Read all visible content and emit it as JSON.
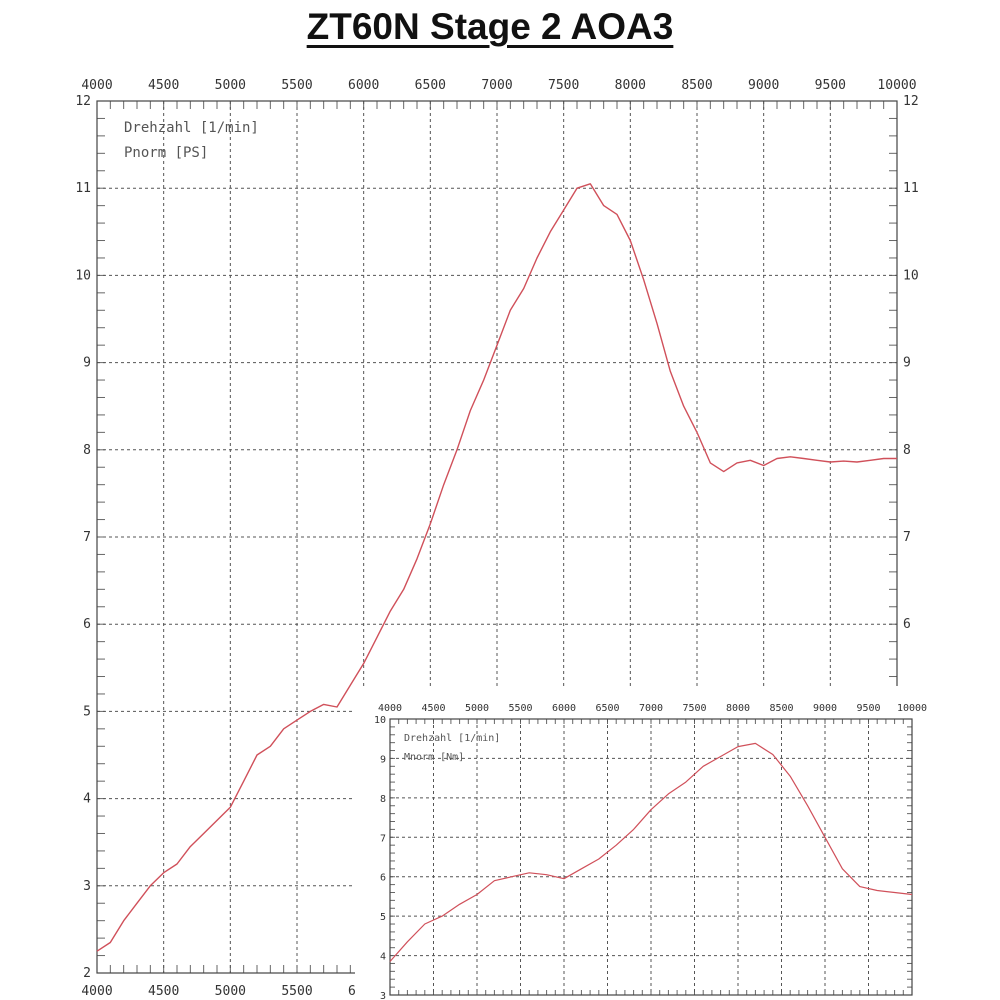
{
  "title": "ZT60N  Stage 2  AOA3",
  "chart_data": [
    {
      "type": "line",
      "xlabel": "Drehzahl [1/min]",
      "ylabel": "Pnorm [PS]",
      "xlim": [
        4000,
        10000
      ],
      "ylim": [
        2,
        12
      ],
      "x_ticks": [
        4000,
        4500,
        5000,
        5500,
        6000,
        6500,
        7000,
        7500,
        8000,
        8500,
        9000,
        9500,
        10000
      ],
      "y_ticks": [
        2,
        3,
        4,
        5,
        6,
        7,
        8,
        9,
        10,
        11,
        12
      ],
      "grid": true,
      "line_color": "#d0505a",
      "series": [
        {
          "x": [
            4000,
            4100,
            4200,
            4300,
            4400,
            4500,
            4600,
            4700,
            4800,
            5000,
            5100,
            5200,
            5300,
            5400,
            5500,
            5600,
            5700,
            5800,
            5900,
            6000,
            6100,
            6200,
            6300,
            6400,
            6500,
            6600,
            6700,
            6800,
            6900,
            7000,
            7100,
            7200,
            7300,
            7400,
            7500,
            7600,
            7700,
            7800,
            7900,
            8000,
            8100,
            8200,
            8300,
            8400,
            8500,
            8600,
            8700,
            8800,
            8900,
            9000,
            9100,
            9200,
            9300,
            9400,
            9500,
            9600,
            9700,
            9800,
            9900,
            10000
          ],
          "y": [
            2.25,
            2.35,
            2.6,
            2.8,
            3.0,
            3.15,
            3.25,
            3.45,
            3.6,
            3.9,
            4.2,
            4.5,
            4.6,
            4.8,
            4.9,
            5.0,
            5.08,
            5.05,
            5.3,
            5.55,
            5.85,
            6.15,
            6.4,
            6.75,
            7.15,
            7.6,
            8.0,
            8.45,
            8.8,
            9.2,
            9.6,
            9.85,
            10.2,
            10.5,
            10.75,
            11.0,
            11.05,
            10.8,
            10.7,
            10.4,
            9.95,
            9.45,
            8.9,
            8.5,
            8.2,
            7.85,
            7.75,
            7.85,
            7.88,
            7.82,
            7.9,
            7.92,
            7.9,
            7.88,
            7.86,
            7.87,
            7.86,
            7.88,
            7.9,
            7.9
          ]
        }
      ]
    },
    {
      "type": "line",
      "xlabel": "Drehzahl [1/min]",
      "ylabel": "Mnorm [Nm]",
      "xlim": [
        4000,
        10000
      ],
      "ylim": [
        3,
        10
      ],
      "x_ticks": [
        4000,
        4500,
        5000,
        5500,
        6000,
        6500,
        7000,
        7500,
        8000,
        8500,
        9000,
        9500,
        10000
      ],
      "y_ticks": [
        3,
        4,
        5,
        6,
        7,
        8,
        9,
        10
      ],
      "grid": true,
      "line_color": "#d0505a",
      "series": [
        {
          "x": [
            4000,
            4200,
            4400,
            4600,
            4800,
            5000,
            5200,
            5400,
            5600,
            5800,
            6000,
            6200,
            6400,
            6600,
            6800,
            7000,
            7200,
            7400,
            7600,
            7800,
            8000,
            8200,
            8400,
            8600,
            8800,
            9000,
            9200,
            9400,
            9600,
            9800,
            10000
          ],
          "y": [
            3.85,
            4.35,
            4.8,
            5.0,
            5.3,
            5.55,
            5.9,
            6.0,
            6.1,
            6.05,
            5.95,
            6.2,
            6.45,
            6.8,
            7.2,
            7.7,
            8.1,
            8.4,
            8.8,
            9.05,
            9.3,
            9.38,
            9.1,
            8.55,
            7.8,
            7.0,
            6.2,
            5.75,
            5.65,
            5.6,
            5.55
          ]
        }
      ]
    }
  ]
}
